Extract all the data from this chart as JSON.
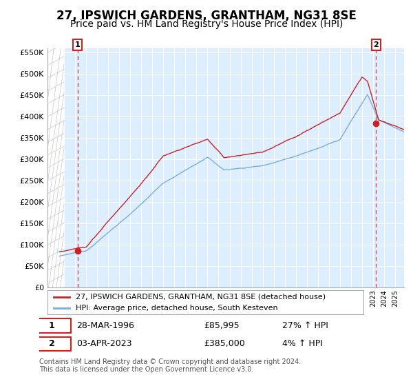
{
  "title": "27, IPSWICH GARDENS, GRANTHAM, NG31 8SE",
  "subtitle": "Price paid vs. HM Land Registry's House Price Index (HPI)",
  "legend_line1": "27, IPSWICH GARDENS, GRANTHAM, NG31 8SE (detached house)",
  "legend_line2": "HPI: Average price, detached house, South Kesteven",
  "footer": "Contains HM Land Registry data © Crown copyright and database right 2024.\nThis data is licensed under the Open Government Licence v3.0.",
  "purchase1_date": "28-MAR-1996",
  "purchase1_price": 85995,
  "purchase1_hpi": "27% ↑ HPI",
  "purchase2_date": "03-APR-2023",
  "purchase2_price": 385000,
  "purchase2_hpi": "4% ↑ HPI",
  "ylim": [
    0,
    560000
  ],
  "ytick_step": 50000,
  "xmin": 1993.5,
  "xmax": 2025.8,
  "hpi_color": "#7aaddc",
  "price_color": "#cc2222",
  "marker_color": "#cc2222",
  "hatch_color": "#c8c8c8",
  "chart_bg": "#ddeeff",
  "grid_color": "#bbbbcc",
  "title_fontsize": 12,
  "subtitle_fontsize": 10,
  "p1_x": 1996.23,
  "p1_y": 85995,
  "p2_x": 2023.27,
  "p2_y": 385000,
  "hatch_cutoff": 1995.0
}
